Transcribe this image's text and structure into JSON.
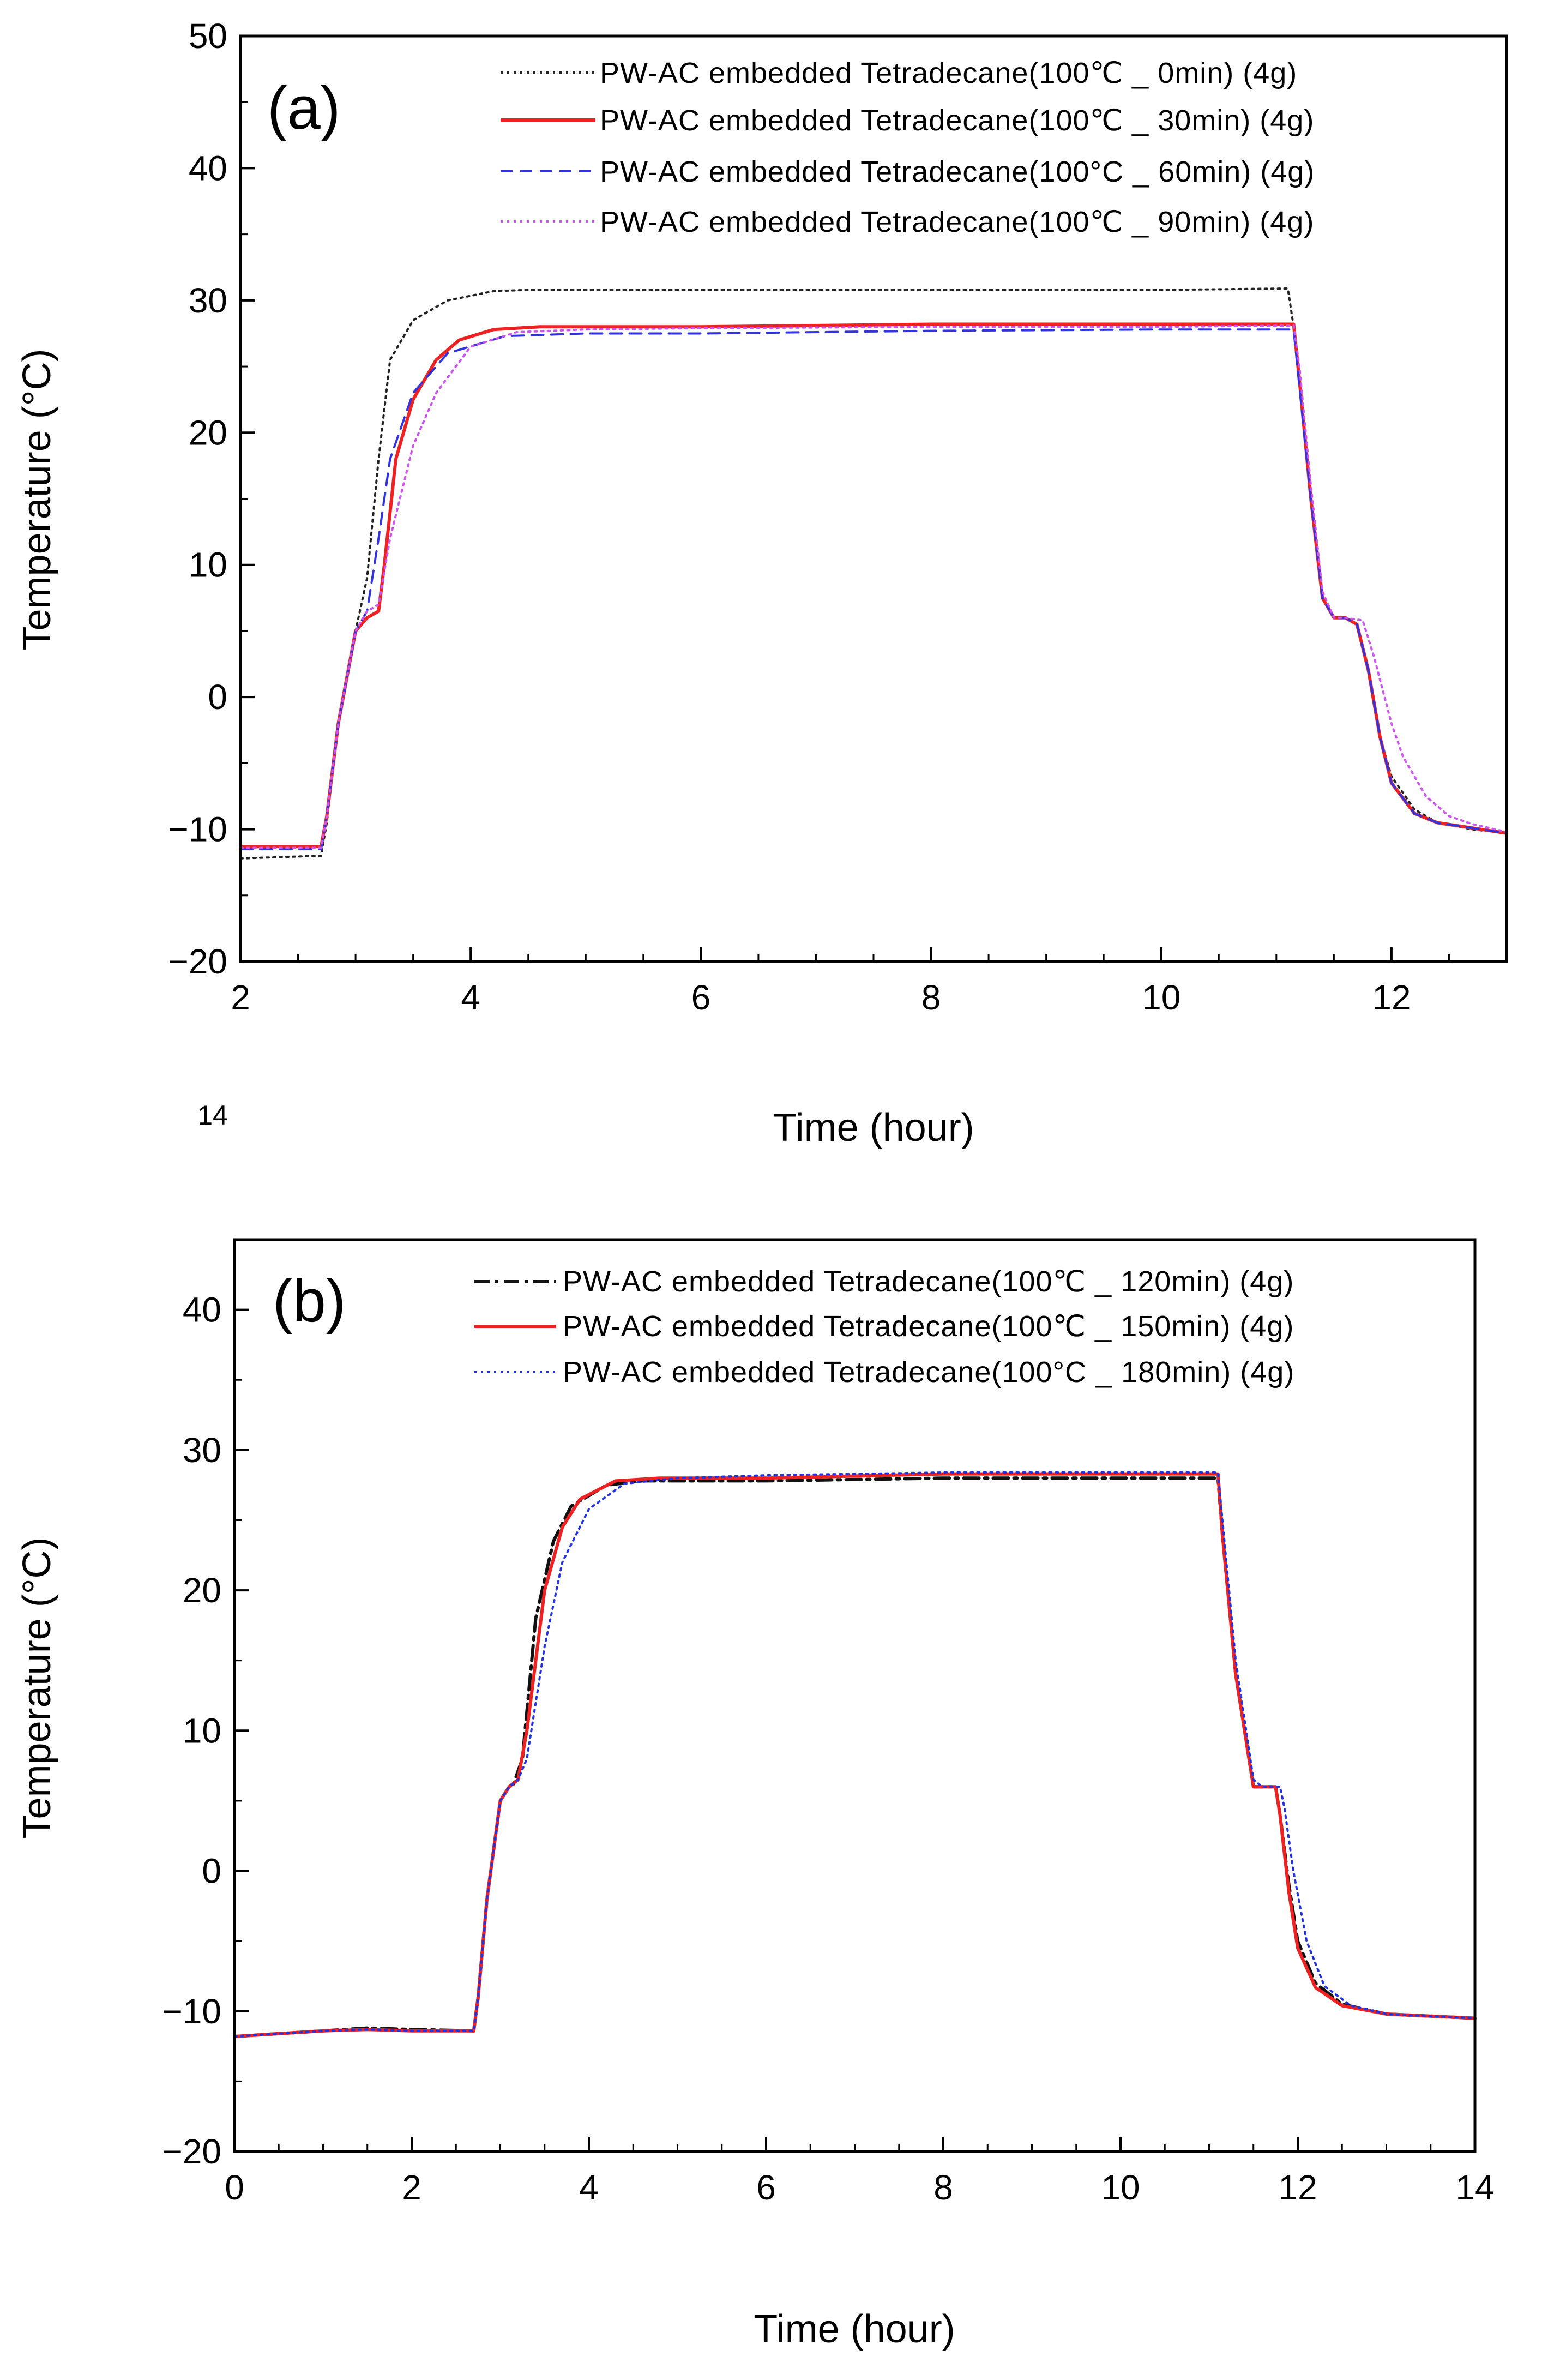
{
  "chart_data": [
    {
      "type": "line",
      "panel_label": "(a)",
      "xlabel": "Time (hour)",
      "ylabel": "Temperature (°C)",
      "xlim": [
        2,
        13
      ],
      "ylim": [
        -20,
        50
      ],
      "xticks": [
        2,
        4,
        6,
        8,
        10,
        12
      ],
      "yticks": [
        -20,
        -10,
        0,
        10,
        20,
        30,
        40,
        50
      ],
      "xtick_labels": [
        "2",
        "4",
        "6",
        "8",
        "10",
        "12"
      ],
      "ytick_labels": [
        "−20",
        "−10",
        "0",
        "10",
        "20",
        "30",
        "40",
        "50"
      ],
      "stray_label": "14",
      "legend_position": "top-right",
      "series": [
        {
          "name": "PW-AC embedded Tetradecane(100℃ _ 0min) (4g)",
          "color": "#222222",
          "style": "dotted",
          "x": [
            2.0,
            2.7,
            2.75,
            2.85,
            3.0,
            3.1,
            3.2,
            3.3,
            3.5,
            3.8,
            4.2,
            4.5,
            6.0,
            8.0,
            10.0,
            11.1,
            11.15,
            11.2,
            11.3,
            11.4,
            11.5,
            11.6,
            11.7,
            11.8,
            11.9,
            12.0,
            12.2,
            12.4,
            12.7,
            13.0
          ],
          "y": [
            -12.2,
            -12.0,
            -9.5,
            -2.0,
            5.0,
            9.0,
            18.0,
            25.5,
            28.5,
            30.0,
            30.7,
            30.8,
            30.8,
            30.8,
            30.8,
            30.9,
            28.0,
            24.0,
            15.0,
            7.5,
            6.0,
            6.0,
            5.5,
            2.0,
            -3.0,
            -6.0,
            -8.5,
            -9.5,
            -10.0,
            -10.3
          ]
        },
        {
          "name": "PW-AC embedded Tetradecane(100℃ _ 30min) (4g)",
          "color": "#ee2222",
          "style": "solid",
          "x": [
            2.0,
            2.7,
            2.75,
            2.85,
            3.0,
            3.1,
            3.2,
            3.25,
            3.35,
            3.5,
            3.7,
            3.9,
            4.2,
            4.6,
            6.0,
            8.0,
            10.0,
            11.15,
            11.2,
            11.3,
            11.4,
            11.5,
            11.6,
            11.7,
            11.8,
            11.9,
            12.0,
            12.2,
            12.4,
            12.7,
            13.0
          ],
          "y": [
            -11.3,
            -11.3,
            -9.0,
            -2.0,
            5.0,
            6.0,
            6.5,
            10.0,
            18.0,
            22.5,
            25.5,
            27.0,
            27.8,
            28.0,
            28.0,
            28.2,
            28.2,
            28.2,
            24.0,
            15.0,
            7.5,
            6.0,
            6.0,
            5.5,
            2.0,
            -3.0,
            -6.5,
            -8.8,
            -9.5,
            -9.9,
            -10.3
          ]
        },
        {
          "name": "PW-AC embedded Tetradecane(100°C _ 60min) (4g)",
          "color": "#3333dd",
          "style": "dashed",
          "x": [
            2.0,
            2.7,
            2.75,
            2.85,
            3.0,
            3.1,
            3.2,
            3.3,
            3.5,
            3.8,
            4.3,
            5.0,
            6.0,
            8.0,
            10.0,
            11.15,
            11.2,
            11.3,
            11.4,
            11.5,
            11.6,
            11.7,
            11.8,
            11.9,
            12.0,
            12.2,
            12.4,
            12.7,
            13.0
          ],
          "y": [
            -11.5,
            -11.5,
            -9.0,
            -2.0,
            5.0,
            6.5,
            12.0,
            18.0,
            23.0,
            26.0,
            27.3,
            27.5,
            27.5,
            27.7,
            27.8,
            27.8,
            23.5,
            15.0,
            7.5,
            6.0,
            6.0,
            5.5,
            2.0,
            -3.0,
            -6.5,
            -8.8,
            -9.5,
            -9.9,
            -10.3
          ]
        },
        {
          "name": "PW-AC embedded Tetradecane(100℃ _ 90min) (4g)",
          "color": "#cc55ee",
          "style": "dotted",
          "x": [
            2.0,
            2.7,
            2.75,
            2.85,
            3.0,
            3.1,
            3.2,
            3.3,
            3.5,
            3.7,
            4.0,
            4.4,
            5.0,
            6.0,
            8.0,
            10.0,
            11.15,
            11.2,
            11.3,
            11.4,
            11.5,
            11.6,
            11.75,
            11.85,
            12.0,
            12.1,
            12.3,
            12.5,
            12.7,
            13.0
          ],
          "y": [
            -11.4,
            -11.4,
            -9.0,
            -2.0,
            5.0,
            6.5,
            7.0,
            12.0,
            19.0,
            23.0,
            26.5,
            27.6,
            27.8,
            27.9,
            28.0,
            28.0,
            28.1,
            25.0,
            16.0,
            8.0,
            6.0,
            6.0,
            5.8,
            3.0,
            -2.0,
            -4.5,
            -7.5,
            -9.0,
            -9.6,
            -10.2
          ]
        }
      ]
    },
    {
      "type": "line",
      "panel_label": "(b)",
      "xlabel": "Time (hour)",
      "ylabel": "Temperature (°C)",
      "xlim": [
        0,
        14
      ],
      "ylim": [
        -20,
        45
      ],
      "xticks": [
        0,
        2,
        4,
        6,
        8,
        10,
        12,
        14
      ],
      "yticks": [
        -20,
        -10,
        0,
        10,
        20,
        30,
        40
      ],
      "xtick_labels": [
        "0",
        "2",
        "4",
        "6",
        "8",
        "10",
        "12",
        "14"
      ],
      "ytick_labels": [
        "−20",
        "−10",
        "0",
        "10",
        "20",
        "30",
        "40"
      ],
      "legend_position": "top-right",
      "series": [
        {
          "name": "PW-AC embedded Tetradecane(100℃ _ 120min) (4g)",
          "color": "#111111",
          "style": "dashdot",
          "x": [
            0.0,
            0.5,
            1.0,
            1.5,
            2.0,
            2.7,
            2.75,
            2.85,
            3.0,
            3.1,
            3.15,
            3.25,
            3.4,
            3.6,
            3.8,
            4.2,
            4.6,
            6.0,
            8.0,
            10.0,
            11.1,
            11.15,
            11.3,
            11.5,
            11.6,
            11.75,
            11.8,
            11.9,
            12.0,
            12.2,
            12.5,
            13.0,
            14.0
          ],
          "y": [
            -11.8,
            -11.6,
            -11.4,
            -11.2,
            -11.3,
            -11.4,
            -9.0,
            -2.0,
            5.0,
            6.0,
            6.2,
            8.0,
            18.0,
            23.5,
            26.0,
            27.5,
            27.8,
            27.8,
            28.0,
            28.0,
            28.0,
            24.0,
            14.0,
            6.0,
            6.0,
            6.0,
            4.0,
            -1.0,
            -5.0,
            -8.0,
            -9.5,
            -10.2,
            -10.5
          ]
        },
        {
          "name": "PW-AC embedded Tetradecane(100℃ _ 150min) (4g)",
          "color": "#ee2222",
          "style": "solid",
          "x": [
            0.0,
            0.5,
            1.0,
            1.5,
            2.0,
            2.7,
            2.75,
            2.85,
            3.0,
            3.1,
            3.2,
            3.3,
            3.5,
            3.7,
            3.9,
            4.3,
            4.8,
            6.0,
            8.0,
            10.0,
            11.1,
            11.15,
            11.3,
            11.5,
            11.6,
            11.75,
            11.8,
            11.9,
            12.0,
            12.2,
            12.5,
            13.0,
            14.0
          ],
          "y": [
            -11.8,
            -11.6,
            -11.4,
            -11.3,
            -11.4,
            -11.4,
            -9.0,
            -2.0,
            5.0,
            6.0,
            6.5,
            10.0,
            20.0,
            24.5,
            26.5,
            27.8,
            28.0,
            28.0,
            28.3,
            28.3,
            28.3,
            24.0,
            14.0,
            6.0,
            6.0,
            6.0,
            4.0,
            -1.5,
            -5.5,
            -8.3,
            -9.6,
            -10.2,
            -10.5
          ]
        },
        {
          "name": "PW-AC embedded Tetradecane(100°C _ 180min) (4g)",
          "color": "#2233dd",
          "style": "dotted",
          "x": [
            0.0,
            0.5,
            1.0,
            1.5,
            2.0,
            2.7,
            2.75,
            2.85,
            3.0,
            3.1,
            3.2,
            3.3,
            3.5,
            3.7,
            4.0,
            4.4,
            5.0,
            6.0,
            8.0,
            10.0,
            11.1,
            11.15,
            11.3,
            11.5,
            11.6,
            11.8,
            11.85,
            11.95,
            12.1,
            12.3,
            12.6,
            13.0,
            14.0
          ],
          "y": [
            -11.8,
            -11.6,
            -11.4,
            -11.3,
            -11.4,
            -11.4,
            -9.0,
            -2.0,
            5.0,
            6.0,
            6.5,
            8.0,
            16.0,
            22.0,
            25.8,
            27.6,
            28.0,
            28.2,
            28.4,
            28.4,
            28.4,
            25.0,
            15.0,
            6.5,
            6.0,
            6.0,
            4.5,
            0.0,
            -5.0,
            -8.2,
            -9.6,
            -10.2,
            -10.5
          ]
        }
      ]
    }
  ]
}
